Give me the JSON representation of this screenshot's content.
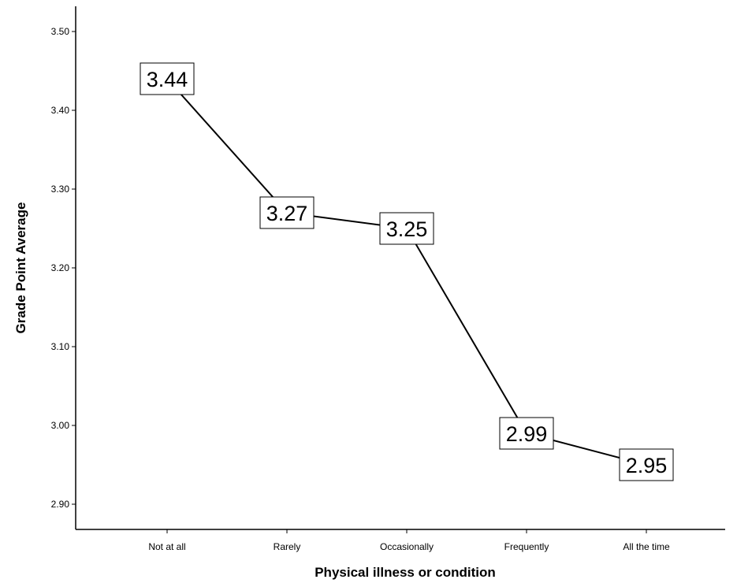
{
  "chart_data": {
    "type": "line",
    "xlabel": "Physical illness or condition",
    "ylabel": "Grade Point Average",
    "categories": [
      "Not at all",
      "Rarely",
      "Occasionally",
      "Frequently",
      "All the time"
    ],
    "values": [
      3.44,
      3.27,
      3.25,
      2.99,
      2.95
    ],
    "data_labels": [
      "3.44",
      "3.27",
      "3.25",
      "2.99",
      "2.95"
    ],
    "ylim": [
      2.88,
      3.53
    ],
    "yticks": [
      2.9,
      3.0,
      3.1,
      3.2,
      3.3,
      3.4,
      3.5
    ],
    "ytick_labels": [
      "2.90",
      "3.00",
      "3.10",
      "3.20",
      "3.30",
      "3.40",
      "3.50"
    ],
    "grid": false,
    "line_color": "#000000",
    "label_box_color": "#ffffff"
  }
}
